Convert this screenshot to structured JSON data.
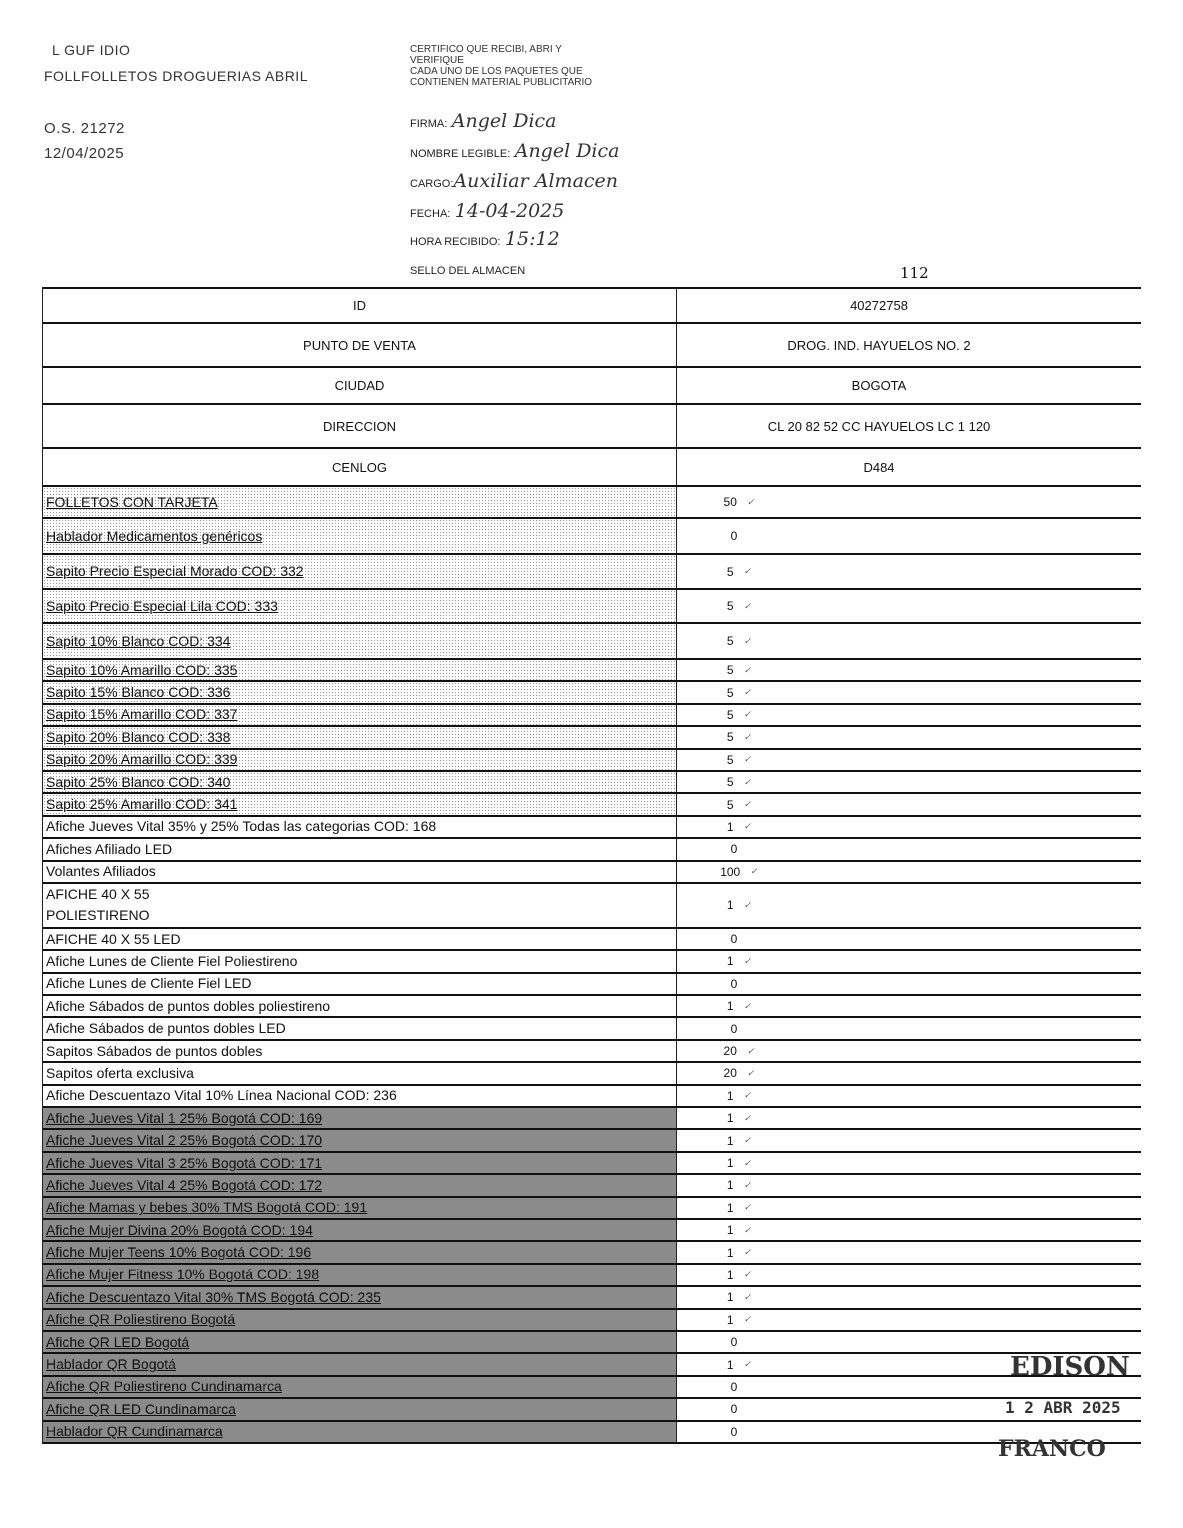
{
  "header": {
    "line1": "L GUF  IDIO",
    "line2": "FOLLFOLLETOS DROGUERIAS ABRIL",
    "os": "O.S. 21272",
    "date": "12/04/2025"
  },
  "certification": {
    "text": [
      "CERTIFICO QUE RECIBI, ABRI Y",
      "VERIFIQUE",
      "CADA UNO DE LOS PAQUETES QUE",
      "CONTIENEN MATERIAL PUBLICITARIO"
    ],
    "firma_label": "FIRMA:",
    "firma_value": "Angel Dica",
    "nombre_label": "NOMBRE LEGIBLE:",
    "nombre_value": "Angel Dica",
    "cargo_label": "CARGO:",
    "cargo_value": "Auxiliar Almacen",
    "fecha_label": "FECHA:",
    "fecha_value": "14-04-2025",
    "hora_label": "HORA RECIBIDO:",
    "hora_value": "15:12",
    "sello_label": "SELLO DEL ALMACEN",
    "sello_number": "112"
  },
  "info_rows": [
    {
      "label": "ID",
      "value": "40272758"
    },
    {
      "label": "PUNTO DE VENTA",
      "value": "DROG. IND. HAYUELOS NO. 2"
    },
    {
      "label": "CIUDAD",
      "value": "BOGOTA"
    },
    {
      "label": "DIRECCION",
      "value": "CL 20 82 52 CC HAYUELOS LC 1 120"
    },
    {
      "label": "CENLOG",
      "value": "D484"
    }
  ],
  "items": [
    {
      "label": "FOLLETOS CON TARJETA",
      "qty": "50"
    },
    {
      "label": "Hablador Medicamentos genéricos",
      "qty": "0"
    },
    {
      "label": "Sapito Precio Especial Morado COD: 332",
      "qty": "5"
    },
    {
      "label": "Sapito Precio Especial Lila COD: 333",
      "qty": "5"
    },
    {
      "label": "Sapito 10% Blanco COD: 334",
      "qty": "5"
    },
    {
      "label": "Sapito 10% Amarillo COD: 335",
      "qty": "5"
    },
    {
      "label": "Sapito 15% Blanco COD: 336",
      "qty": "5"
    },
    {
      "label": "Sapito 15% Amarillo COD: 337",
      "qty": "5"
    },
    {
      "label": "Sapito 20% Blanco COD: 338",
      "qty": "5"
    },
    {
      "label": "Sapito 20% Amarillo COD: 339",
      "qty": "5"
    },
    {
      "label": "Sapito 25% Blanco COD: 340",
      "qty": "5"
    },
    {
      "label": "Sapito 25% Amarillo COD: 341",
      "qty": "5"
    },
    {
      "label": "Afiche Jueves Vital 35% y 25% Todas las categorias COD: 168",
      "qty": "1"
    },
    {
      "label": "Afiches Afiliado LED",
      "qty": "0"
    },
    {
      "label": "Volantes Afiliados",
      "qty": "100"
    },
    {
      "label": "AFICHE 40 X 55\nPOLIESTIRENO",
      "qty": "1"
    },
    {
      "label": "AFICHE 40 X 55 LED",
      "qty": "0"
    },
    {
      "label": "Afiche Lunes de Cliente Fiel Poliestireno",
      "qty": "1"
    },
    {
      "label": "Afiche Lunes de Cliente Fiel LED",
      "qty": "0"
    },
    {
      "label": "Afiche Sábados de puntos dobles poliestireno",
      "qty": "1"
    },
    {
      "label": "Afiche Sábados de puntos dobles LED",
      "qty": "0"
    },
    {
      "label": "Sapitos Sábados de puntos dobles",
      "qty": "20"
    },
    {
      "label": "Sapitos oferta exclusiva",
      "qty": "20"
    },
    {
      "label": "Afiche Descuentazo Vital 10% Línea Nacional COD: 236",
      "qty": "1"
    },
    {
      "label": "Afiche Jueves Vital 1 25% Bogotá COD: 169",
      "qty": "1"
    },
    {
      "label": "Afiche Jueves Vital 2 25% Bogotá COD: 170",
      "qty": "1"
    },
    {
      "label": "Afiche Jueves Vital 3 25% Bogotá COD: 171",
      "qty": "1"
    },
    {
      "label": "Afiche Jueves Vital 4 25% Bogotá COD: 172",
      "qty": "1"
    },
    {
      "label": "Afiche Mamas y bebes 30% TMS Bogotá COD: 191",
      "qty": "1"
    },
    {
      "label": "Afiche Mujer Divina 20% Bogotá COD: 194",
      "qty": "1"
    },
    {
      "label": "Afiche Mujer Teens 10% Bogotá COD: 196",
      "qty": "1"
    },
    {
      "label": "Afiche Mujer Fitness 10% Bogotá COD: 198",
      "qty": "1"
    },
    {
      "label": "Afiche Descuentazo Vital 30% TMS Bogotá COD: 235",
      "qty": "1"
    },
    {
      "label": "Afiche QR Poliestireno Bogotá",
      "qty": "1"
    },
    {
      "label": "Afiche QR LED Bogotá",
      "qty": "0"
    },
    {
      "label": "Hablador QR Bogotá",
      "qty": "1"
    },
    {
      "label": "Afiche QR Poliestireno Cundinamarca",
      "qty": "0"
    },
    {
      "label": "Afiche QR LED Cundinamarca",
      "qty": "0"
    },
    {
      "label": "Hablador QR Cundinamarca",
      "qty": "0"
    }
  ],
  "stamp": {
    "name": "EDISON",
    "date": "1 2 ABR 2025",
    "surname": "FRANCO"
  }
}
